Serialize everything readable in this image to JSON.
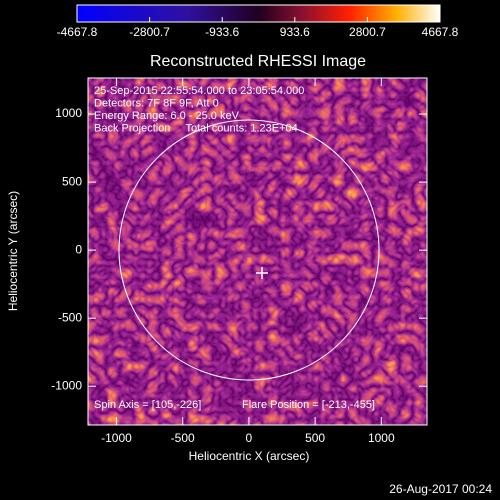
{
  "chart_data": {
    "type": "image",
    "title": "Reconstructed RHESSI Image",
    "x_label": "Heliocentric X (arcsec)",
    "y_label": "Heliocentric Y (arcsec)",
    "xlim": [
      -1215,
      1345
    ],
    "ylim": [
      -1285,
      1265
    ],
    "xticks": [
      -1000,
      -500,
      0,
      500,
      1000
    ],
    "yticks": [
      -1000,
      -500,
      0,
      500,
      1000
    ],
    "colorbar": {
      "lim": [
        -4667.8,
        4667.8
      ],
      "ticks": [
        -4667.8,
        -2800.7,
        -933.6,
        933.6,
        2800.7,
        4667.8
      ]
    },
    "annotations": [
      "25-Sep-2015 22:55:54.000 to 23:05:54.000",
      "Detectors: 7F 8F 9F, Att 0",
      "Energy Range: 6.0 - 25.0 keV",
      "Back Projection     Total counts: 1.23E+04"
    ],
    "footer_annotations": [
      "Spin Axis = [105,-226]",
      "Flare Position = [-213,-455]"
    ],
    "timestamp": "26-Aug-2017 00:24"
  }
}
